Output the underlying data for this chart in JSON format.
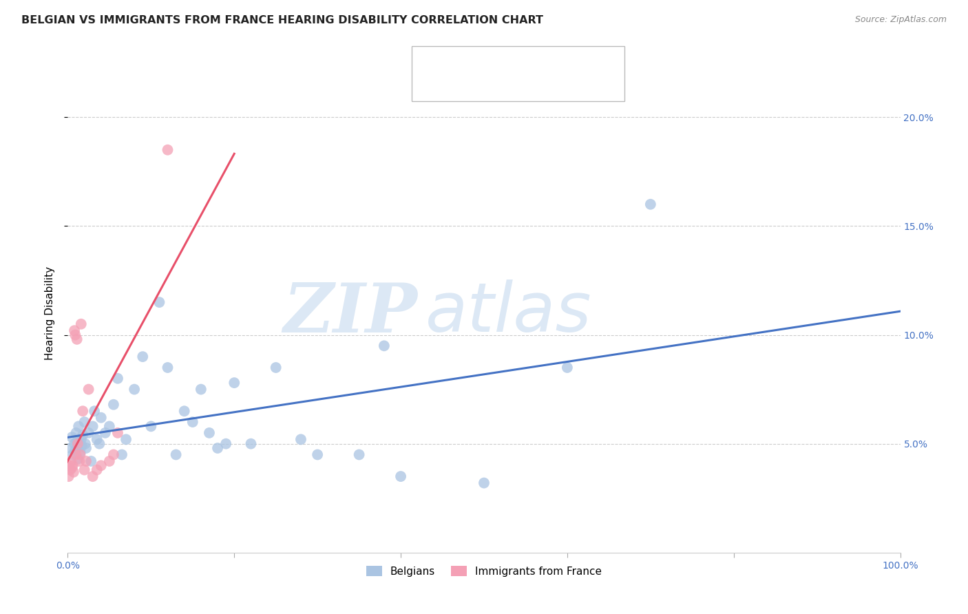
{
  "title": "BELGIAN VS IMMIGRANTS FROM FRANCE HEARING DISABILITY CORRELATION CHART",
  "source": "Source: ZipAtlas.com",
  "ylabel": "Hearing Disability",
  "xlim": [
    0,
    100
  ],
  "ylim": [
    0,
    22
  ],
  "yticks": [
    5,
    10,
    15,
    20
  ],
  "ytick_labels": [
    "5.0%",
    "10.0%",
    "15.0%",
    "20.0%"
  ],
  "belgian_color": "#aac4e2",
  "french_color": "#f4a0b5",
  "trendline_blue": "#4472c4",
  "trendline_pink": "#e8506a",
  "watermark_zip": "ZIP",
  "watermark_atlas": "atlas",
  "belgian_x": [
    0.3,
    0.5,
    0.6,
    0.8,
    0.9,
    1.0,
    1.1,
    1.2,
    1.3,
    1.5,
    1.6,
    1.7,
    1.8,
    2.0,
    2.1,
    2.2,
    2.5,
    2.8,
    3.0,
    3.2,
    3.5,
    3.8,
    4.0,
    4.5,
    5.0,
    5.5,
    6.0,
    6.5,
    7.0,
    8.0,
    9.0,
    10.0,
    11.0,
    12.0,
    13.0,
    14.0,
    15.0,
    16.0,
    17.0,
    18.0,
    19.0,
    20.0,
    22.0,
    25.0,
    28.0,
    30.0,
    35.0,
    38.0,
    40.0,
    50.0,
    60.0,
    70.0
  ],
  "belgian_y": [
    4.8,
    5.3,
    4.5,
    5.0,
    4.7,
    5.5,
    5.1,
    4.3,
    5.8,
    4.6,
    5.2,
    4.9,
    5.4,
    6.0,
    5.0,
    4.8,
    5.5,
    4.2,
    5.8,
    6.5,
    5.2,
    5.0,
    6.2,
    5.5,
    5.8,
    6.8,
    8.0,
    4.5,
    5.2,
    7.5,
    9.0,
    5.8,
    11.5,
    8.5,
    4.5,
    6.5,
    6.0,
    7.5,
    5.5,
    4.8,
    5.0,
    7.8,
    5.0,
    8.5,
    5.2,
    4.5,
    4.5,
    9.5,
    3.5,
    3.2,
    8.5,
    16.0
  ],
  "french_x": [
    0.1,
    0.2,
    0.3,
    0.4,
    0.5,
    0.6,
    0.7,
    0.8,
    0.9,
    1.0,
    1.1,
    1.2,
    1.4,
    1.5,
    1.6,
    1.8,
    2.0,
    2.2,
    2.5,
    3.0,
    3.5,
    4.0,
    5.0,
    5.5,
    6.0,
    12.0
  ],
  "french_y": [
    3.5,
    4.0,
    3.8,
    4.2,
    3.9,
    4.0,
    3.7,
    10.2,
    10.0,
    4.5,
    9.8,
    5.0,
    4.2,
    4.5,
    10.5,
    6.5,
    3.8,
    4.2,
    7.5,
    3.5,
    3.8,
    4.0,
    4.2,
    4.5,
    5.5,
    18.5
  ]
}
